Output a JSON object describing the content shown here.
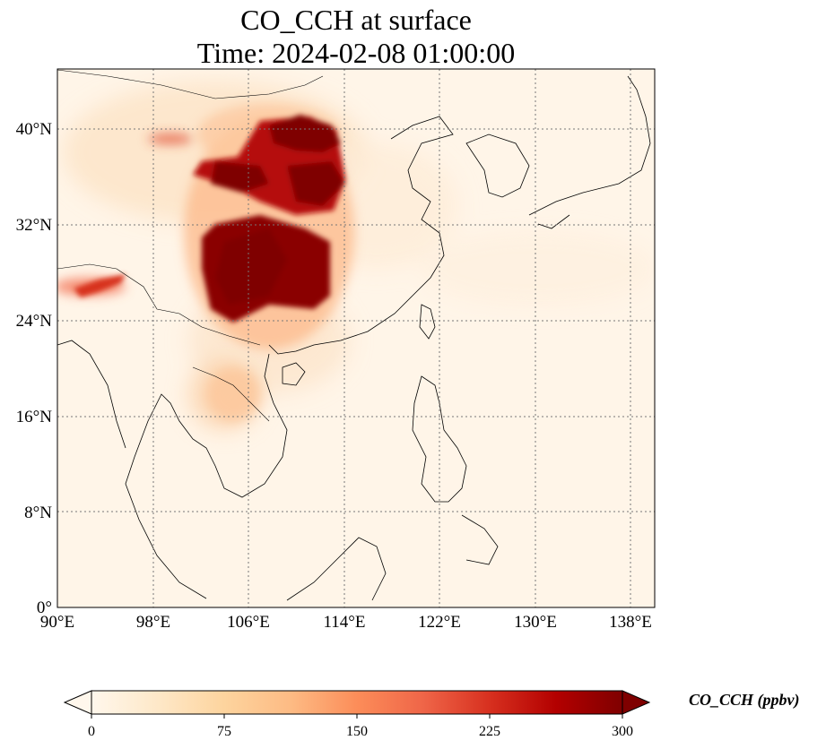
{
  "title_line1": "CO_CCH at surface",
  "title_line2": "Time: 2024-02-08 01:00:00",
  "map": {
    "lon_range": [
      90,
      140
    ],
    "lat_range": [
      0,
      45
    ],
    "lon_ticks": [
      "90°E",
      "98°E",
      "106°E",
      "114°E",
      "122°E",
      "130°E",
      "138°E"
    ],
    "lat_ticks": [
      "0°",
      "8°N",
      "16°N",
      "24°N",
      "32°N",
      "40°N"
    ],
    "gridlines": true,
    "projection": "PlateCarree"
  },
  "colorbar": {
    "label": "CO_CCH (ppbv)",
    "colormap": "OrRd",
    "range": [
      0,
      300
    ],
    "extend": "both",
    "ticks": [
      "0",
      "75",
      "150",
      "225",
      "300"
    ],
    "colors": [
      "#fff7ec",
      "#fee8c8",
      "#fdd49e",
      "#fdbb84",
      "#fc8d59",
      "#ef6548",
      "#d7301f",
      "#b30000",
      "#7f0000"
    ]
  }
}
